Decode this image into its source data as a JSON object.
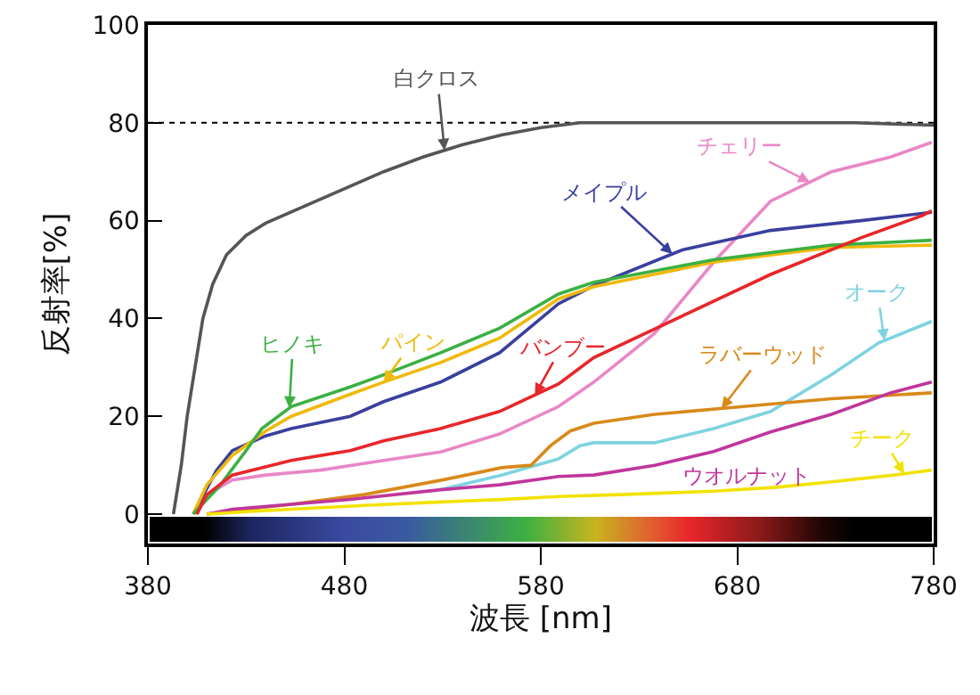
{
  "chart_data": {
    "type": "line",
    "xlabel": "波長 [nm]",
    "ylabel": "反射率[%]",
    "xlim": [
      380,
      780
    ],
    "ylim": [
      -6,
      100
    ],
    "xticks": [
      380,
      480,
      580,
      680,
      780
    ],
    "yticks": [
      0,
      20,
      40,
      60,
      80,
      100
    ],
    "grid": false,
    "legend": false,
    "marker": "none",
    "line_style": "solid",
    "ref_lines": [
      {
        "axis": "y",
        "value": 80,
        "color": "#000000",
        "line_style": "dotted"
      }
    ],
    "series": [
      {
        "name": "白クロス",
        "color": "#555555",
        "x": [
          393,
          397,
          400,
          404,
          408,
          413,
          420,
          430,
          440,
          460,
          480,
          500,
          520,
          540,
          560,
          580,
          600,
          640,
          700,
          740,
          780
        ],
        "values": [
          0,
          10,
          20,
          30,
          40,
          47,
          53,
          57,
          59.5,
          63,
          66.5,
          70,
          73,
          75.5,
          77.5,
          79,
          80,
          80,
          80,
          80,
          79.5
        ]
      },
      {
        "name": "チェリー",
        "color": "#e987c7",
        "x": [
          404,
          410,
          423,
          440,
          468,
          500,
          529,
          559,
          589,
          607,
          638,
          668,
          697,
          728,
          758,
          779
        ],
        "values": [
          0,
          4,
          7,
          8,
          9,
          11,
          12.7,
          16.4,
          22,
          27,
          37,
          51.5,
          64,
          70,
          73,
          76
        ]
      },
      {
        "name": "メイプル",
        "color": "#3a3f9e",
        "x": [
          405,
          407,
          415,
          423,
          440,
          453,
          483,
          500,
          529,
          559,
          589,
          607,
          652,
          697,
          743,
          779
        ],
        "values": [
          0,
          3,
          9,
          13,
          16,
          17.5,
          20,
          23,
          27,
          33,
          43,
          46.7,
          54,
          58,
          60,
          61.7
        ]
      },
      {
        "name": "パイン",
        "color": "#f0b90b",
        "x": [
          403,
          410,
          423,
          440,
          453,
          483,
          500,
          529,
          559,
          589,
          607,
          668,
          728,
          779
        ],
        "values": [
          0,
          6,
          12,
          17,
          20,
          24.5,
          27,
          31,
          36,
          44,
          46.5,
          51.5,
          54.5,
          55
        ]
      },
      {
        "name": "ヒノキ",
        "color": "#3cb043",
        "x": [
          403,
          410,
          416,
          430,
          438,
          453,
          483,
          500,
          529,
          559,
          589,
          607,
          668,
          728,
          779
        ],
        "values": [
          0,
          3,
          5.5,
          13,
          17.5,
          22,
          26,
          28.5,
          33,
          38,
          45,
          47.4,
          52,
          55,
          56
        ]
      },
      {
        "name": "バンブー",
        "color": "#e8262a",
        "x": [
          405,
          410,
          423,
          453,
          483,
          500,
          529,
          559,
          589,
          607,
          652,
          697,
          743,
          774,
          779
        ],
        "values": [
          0,
          4,
          8,
          11,
          13,
          15,
          17.5,
          21,
          26.6,
          32,
          40.5,
          49,
          56.5,
          61,
          62
        ]
      },
      {
        "name": "オーク",
        "color": "#7fd3e0",
        "x": [
          529,
          560,
          589,
          600,
          607,
          638,
          668,
          697,
          728,
          752,
          779
        ],
        "values": [
          5,
          8,
          11.3,
          14,
          14.6,
          14.6,
          17.5,
          21,
          28.5,
          35,
          39.4
        ]
      },
      {
        "name": "ラバーウッド",
        "color": "#d9891a",
        "x": [
          410,
          430,
          453,
          490,
          530,
          560,
          575,
          585,
          595,
          607,
          638,
          683,
          728,
          779
        ],
        "values": [
          0,
          1,
          2,
          4,
          7,
          9.5,
          10,
          14,
          17,
          18.6,
          20.4,
          22,
          23.6,
          24.8
        ]
      },
      {
        "name": "ウオルナット",
        "color": "#c0369c",
        "x": [
          410,
          423,
          453,
          483,
          529,
          559,
          589,
          607,
          638,
          668,
          697,
          728,
          758,
          779
        ],
        "values": [
          0,
          1,
          2,
          3,
          5,
          6,
          7.7,
          8,
          10,
          12.8,
          16.8,
          20.4,
          24.8,
          27
        ]
      },
      {
        "name": "チーク",
        "color": "#f2e200",
        "x": [
          410,
          430,
          453,
          490,
          529,
          560,
          589,
          620,
          668,
          700,
          728,
          760,
          779
        ],
        "values": [
          0,
          0.5,
          1,
          1.8,
          2.5,
          3,
          3.6,
          4,
          4.7,
          5.5,
          6.6,
          8,
          9
        ]
      }
    ]
  }
}
